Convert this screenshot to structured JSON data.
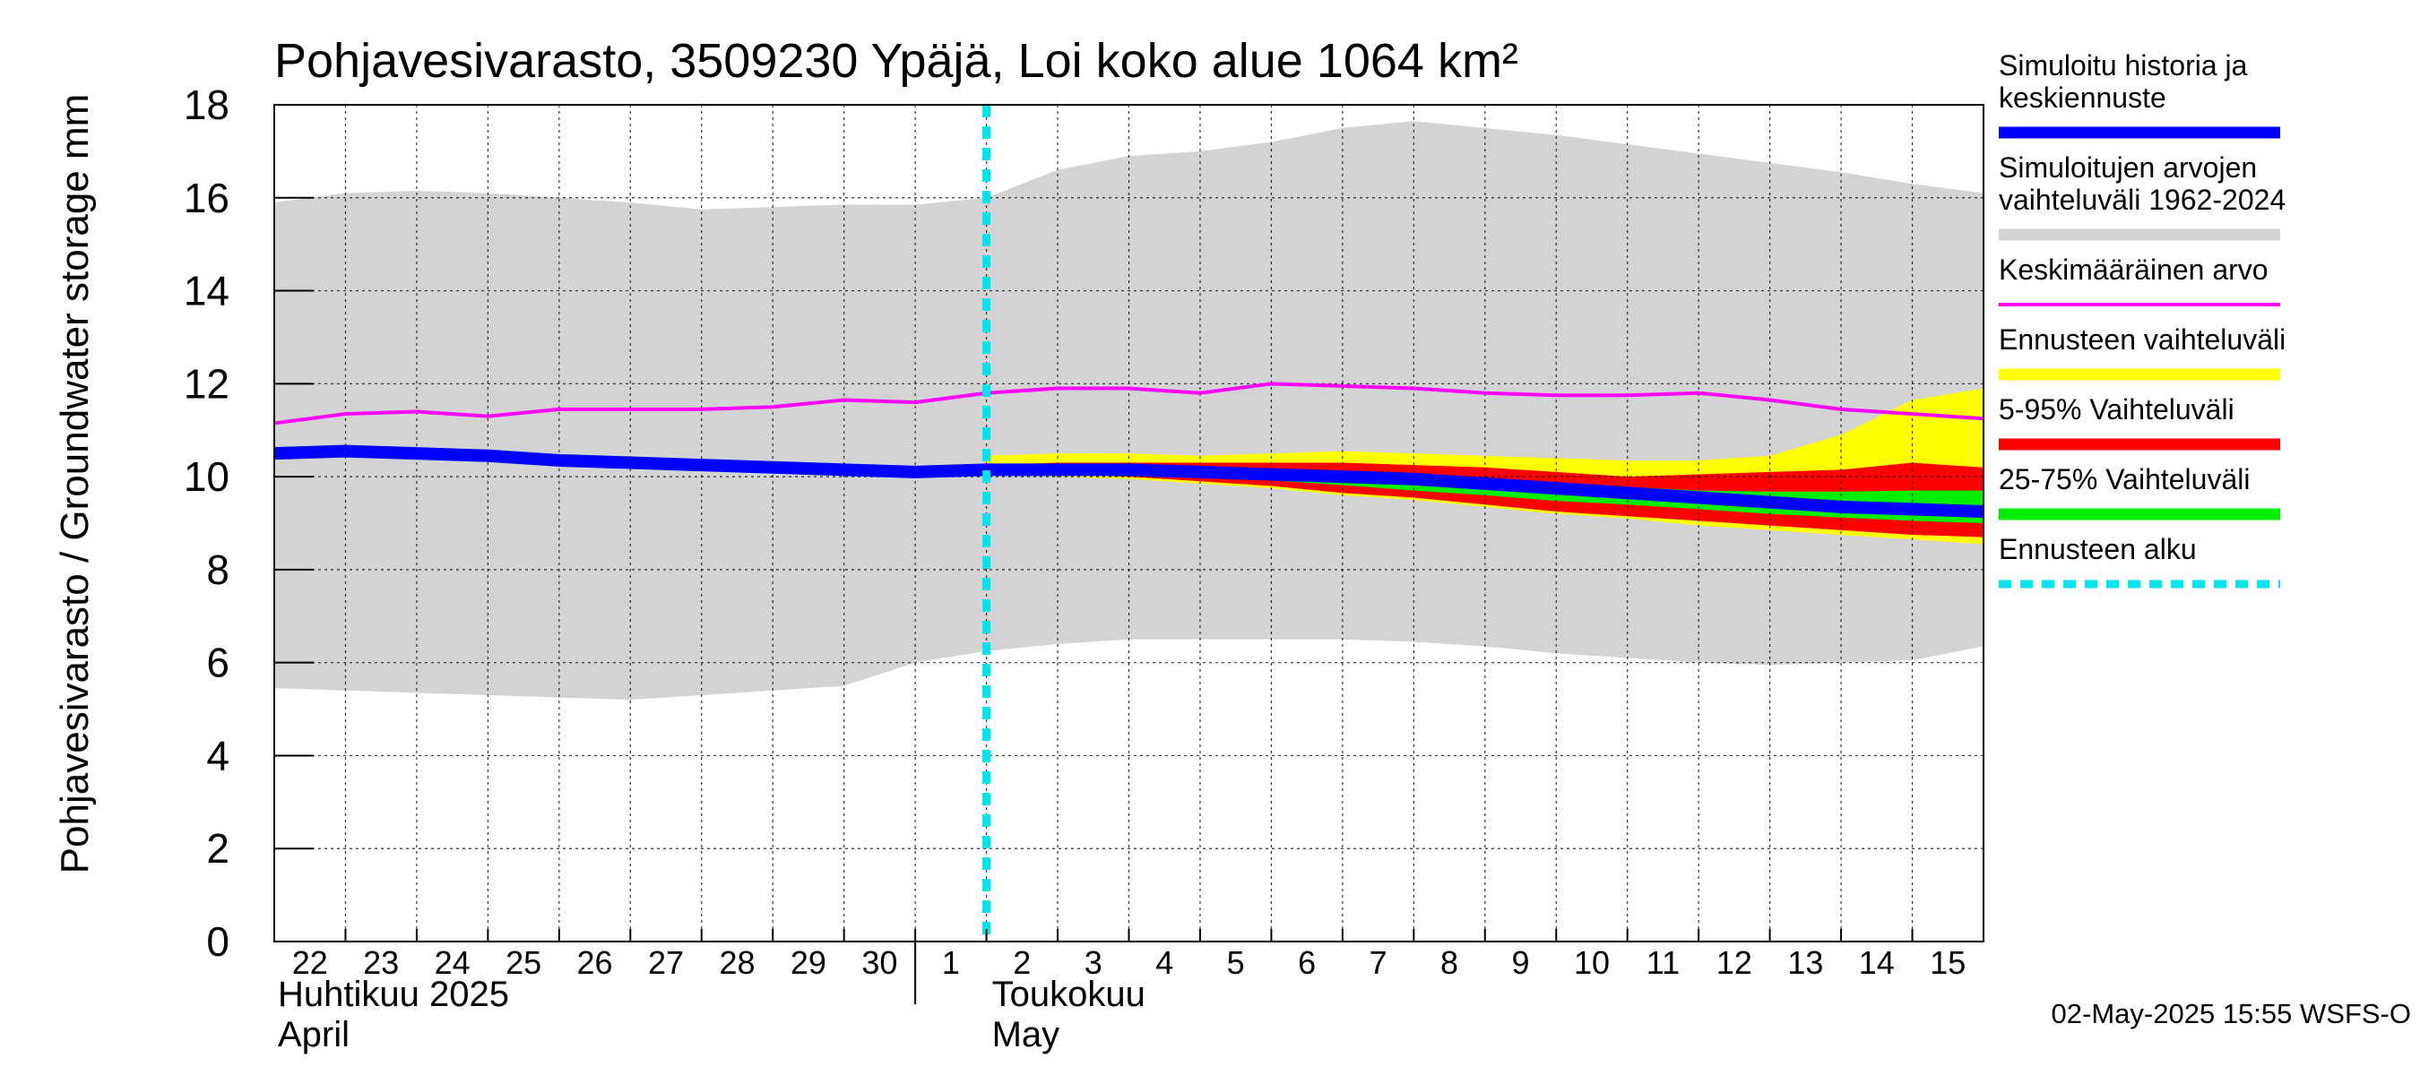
{
  "chart_data": {
    "type": "area",
    "title": "Pohjavesivarasto, 3509230 Ypäjä, Loi koko alue 1064 km²",
    "ylabel": "Pohjavesivarasto / Groundwater storage   mm",
    "ylim": [
      0,
      18
    ],
    "yticks": [
      0,
      2,
      4,
      6,
      8,
      10,
      12,
      14,
      16,
      18
    ],
    "x_range": [
      -0.5,
      23.5
    ],
    "x_tick_labels": [
      "22",
      "23",
      "24",
      "25",
      "26",
      "27",
      "28",
      "29",
      "30",
      "1",
      "2",
      "3",
      "4",
      "5",
      "6",
      "7",
      "8",
      "9",
      "10",
      "11",
      "12",
      "13",
      "14",
      "15"
    ],
    "month_labels": [
      {
        "line1": "Huhtikuu  2025",
        "line2": "April"
      },
      {
        "line1": "Toukokuu",
        "line2": "May"
      }
    ],
    "forecast_start_x": 9.5,
    "grid": true,
    "legend_position": "right",
    "series": [
      {
        "name": "Simuloitujen arvojen vaihteluväli 1962-2024",
        "kind": "band",
        "color": "#d3d3d3",
        "x": [
          -0.5,
          0.5,
          1.5,
          2.5,
          3.5,
          4.5,
          5.5,
          6.5,
          7.5,
          8.5,
          9.5,
          10.5,
          11.5,
          12.5,
          13.5,
          14.5,
          15.5,
          16.5,
          17.5,
          18.5,
          19.5,
          20.5,
          21.5,
          22.5,
          23.5
        ],
        "upper": [
          15.9,
          16.1,
          16.15,
          16.1,
          16.0,
          15.9,
          15.75,
          15.8,
          15.85,
          15.85,
          16.0,
          16.6,
          16.9,
          17.0,
          17.2,
          17.5,
          17.65,
          17.5,
          17.35,
          17.15,
          16.95,
          16.75,
          16.55,
          16.3,
          16.1
        ],
        "lower": [
          5.45,
          5.4,
          5.35,
          5.3,
          5.25,
          5.2,
          5.3,
          5.4,
          5.5,
          6.0,
          6.25,
          6.4,
          6.5,
          6.5,
          6.5,
          6.5,
          6.45,
          6.35,
          6.2,
          6.1,
          6.0,
          5.95,
          6.0,
          6.05,
          6.35
        ]
      },
      {
        "name": "Ennusteen vaihteluväli",
        "kind": "band",
        "color": "#ffff00",
        "x": [
          9.5,
          10.5,
          11.5,
          12.5,
          13.5,
          14.5,
          15.5,
          16.5,
          17.5,
          18.5,
          19.5,
          20.5,
          21.5,
          22.5,
          23.5
        ],
        "upper": [
          10.45,
          10.5,
          10.5,
          10.45,
          10.5,
          10.55,
          10.5,
          10.45,
          10.4,
          10.35,
          10.35,
          10.45,
          10.9,
          11.65,
          11.9
        ],
        "lower": [
          10.05,
          10.0,
          9.95,
          9.85,
          9.75,
          9.6,
          9.5,
          9.35,
          9.2,
          9.1,
          8.95,
          8.85,
          8.75,
          8.65,
          8.55
        ]
      },
      {
        "name": "5-95% Vaihteluväli",
        "kind": "band",
        "color": "#ff0000",
        "x": [
          9.5,
          10.5,
          11.5,
          12.5,
          13.5,
          14.5,
          15.5,
          16.5,
          17.5,
          18.5,
          19.5,
          20.5,
          21.5,
          22.5,
          23.5
        ],
        "upper": [
          10.25,
          10.3,
          10.3,
          10.3,
          10.3,
          10.3,
          10.25,
          10.2,
          10.1,
          10.0,
          10.05,
          10.1,
          10.15,
          10.3,
          10.2
        ],
        "lower": [
          10.1,
          10.05,
          10.0,
          9.9,
          9.8,
          9.65,
          9.55,
          9.4,
          9.25,
          9.15,
          9.05,
          8.95,
          8.85,
          8.75,
          8.7
        ]
      },
      {
        "name": "25-75% Vaihteluväli",
        "kind": "band",
        "color": "#00ee00",
        "x": [
          9.5,
          10.5,
          11.5,
          12.5,
          13.5,
          14.5,
          15.5,
          16.5,
          17.5,
          18.5,
          19.5,
          20.5,
          21.5,
          22.5,
          23.5
        ],
        "upper": [
          10.22,
          10.24,
          10.24,
          10.2,
          10.15,
          10.1,
          10.02,
          9.95,
          9.85,
          9.78,
          9.7,
          9.68,
          9.68,
          9.7,
          9.7
        ],
        "lower": [
          10.12,
          10.1,
          10.05,
          10.0,
          9.92,
          9.82,
          9.7,
          9.6,
          9.48,
          9.4,
          9.3,
          9.2,
          9.12,
          9.05,
          9.0
        ]
      },
      {
        "name": "Keskimääräinen arvo",
        "kind": "line",
        "color": "#ff00ff",
        "x": [
          -0.5,
          0.5,
          1.5,
          2.5,
          3.5,
          4.5,
          5.5,
          6.5,
          7.5,
          8.5,
          9.5,
          10.5,
          11.5,
          12.5,
          13.5,
          14.5,
          15.5,
          16.5,
          17.5,
          18.5,
          19.5,
          20.5,
          21.5,
          22.5,
          23.5
        ],
        "values": [
          11.15,
          11.35,
          11.4,
          11.3,
          11.45,
          11.45,
          11.45,
          11.5,
          11.65,
          11.6,
          11.8,
          11.9,
          11.9,
          11.8,
          12.0,
          11.95,
          11.9,
          11.8,
          11.75,
          11.75,
          11.8,
          11.65,
          11.45,
          11.35,
          11.25
        ]
      },
      {
        "name": "Simuloitu historia ja keskiennuste",
        "kind": "line",
        "color": "#0000ff",
        "x": [
          -0.5,
          0.5,
          1.5,
          2.5,
          3.5,
          4.5,
          5.5,
          6.5,
          7.5,
          8.5,
          9.5,
          10.5,
          11.5,
          12.5,
          13.5,
          14.5,
          15.5,
          16.5,
          17.5,
          18.5,
          19.5,
          20.5,
          21.5,
          22.5,
          23.5
        ],
        "values": [
          10.5,
          10.55,
          10.5,
          10.45,
          10.35,
          10.3,
          10.25,
          10.2,
          10.15,
          10.1,
          10.15,
          10.15,
          10.15,
          10.1,
          10.05,
          10.0,
          9.95,
          9.85,
          9.75,
          9.65,
          9.55,
          9.45,
          9.35,
          9.3,
          9.25
        ]
      },
      {
        "name": "Ennusteen alku",
        "kind": "vline",
        "color": "#00e5ee",
        "x": 9.5
      }
    ],
    "legend": [
      {
        "label_lines": [
          "Simuloitu historia ja",
          "keskiennuste"
        ],
        "color": "#0000ff",
        "style": "thick"
      },
      {
        "label_lines": [
          "Simuloitujen arvojen",
          "vaihteluväli 1962-2024"
        ],
        "color": "#d3d3d3",
        "style": "thick"
      },
      {
        "label_lines": [
          "Keskimääräinen arvo"
        ],
        "color": "#ff00ff",
        "style": "thin"
      },
      {
        "label_lines": [
          "Ennusteen vaihteluväli"
        ],
        "color": "#ffff00",
        "style": "thick"
      },
      {
        "label_lines": [
          "5-95% Vaihteluväli"
        ],
        "color": "#ff0000",
        "style": "thick"
      },
      {
        "label_lines": [
          "25-75% Vaihteluväli"
        ],
        "color": "#00ee00",
        "style": "thick"
      },
      {
        "label_lines": [
          "Ennusteen alku"
        ],
        "color": "#00e5ee",
        "style": "dashed"
      }
    ],
    "footer": "02-May-2025 15:55 WSFS-O"
  }
}
